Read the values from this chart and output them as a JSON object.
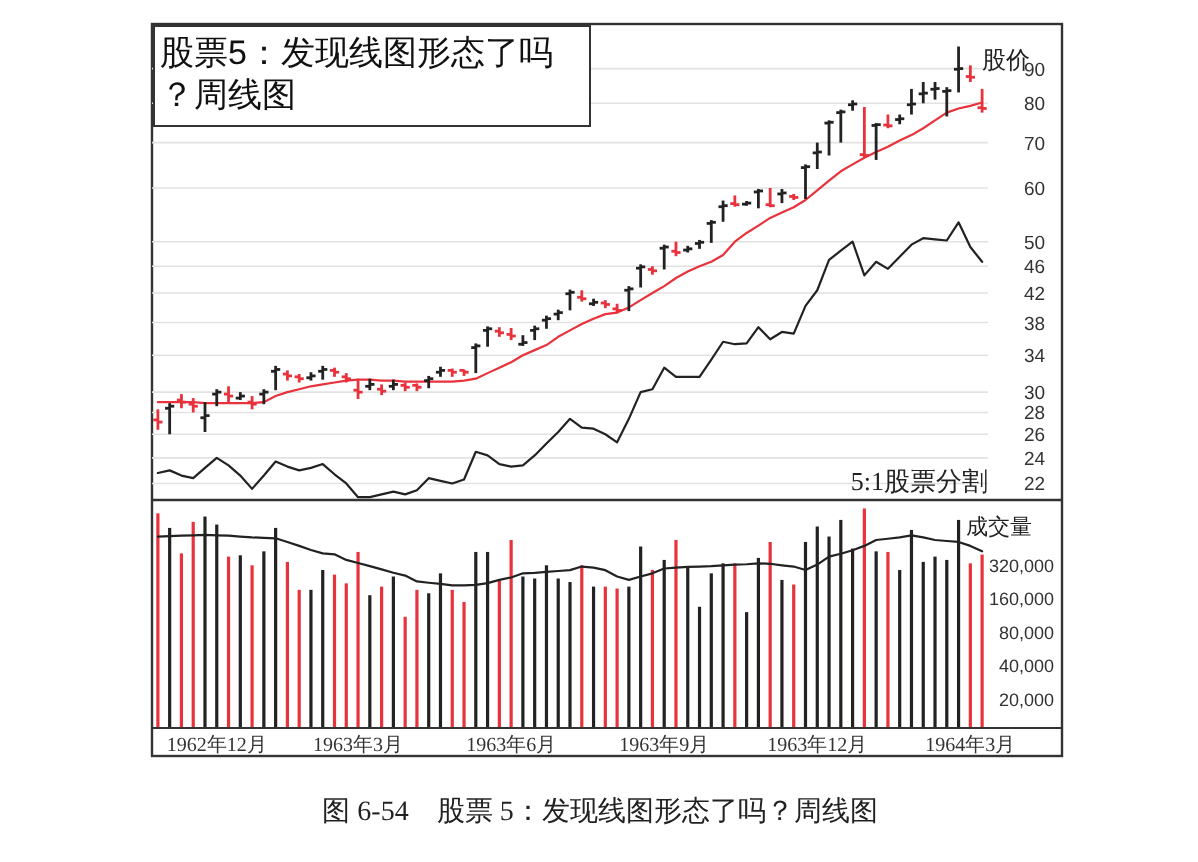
{
  "chart_data": [
    {
      "type": "candlestick",
      "title": "股票5：发现线图形态了吗？周线图",
      "ylabel": "股价",
      "categories": [
        null,
        null,
        null,
        null,
        null,
        null,
        null,
        null,
        null,
        null,
        null,
        null,
        null,
        null,
        null,
        null,
        null,
        null,
        null,
        null,
        null,
        null,
        null,
        null,
        null,
        null,
        null,
        null,
        null,
        null,
        null,
        null,
        null,
        null,
        null,
        null,
        null,
        null,
        null,
        null,
        null,
        null,
        null,
        null,
        null,
        null,
        null,
        null,
        null,
        null,
        null,
        null,
        null,
        null,
        null,
        null,
        null,
        null,
        null,
        null,
        null,
        null,
        null,
        null,
        null,
        null,
        null,
        null,
        null,
        null,
        null
      ],
      "ohlc": [
        [
          27.3,
          28.3,
          26.4,
          27.1
        ],
        [
          28.4,
          28.9,
          26.0,
          28.6
        ],
        [
          29.2,
          29.8,
          28.4,
          29.0
        ],
        [
          28.8,
          29.4,
          28.0,
          28.6
        ],
        [
          27.5,
          29.0,
          26.2,
          27.7
        ],
        [
          29.8,
          30.3,
          28.6,
          30.0
        ],
        [
          29.8,
          30.6,
          29.0,
          29.6
        ],
        [
          29.4,
          30.0,
          29.2,
          29.6
        ],
        [
          29.0,
          29.6,
          28.3,
          28.8
        ],
        [
          29.8,
          30.3,
          28.8,
          30.0
        ],
        [
          32.2,
          32.8,
          30.2,
          32.4
        ],
        [
          31.9,
          32.3,
          31.2,
          31.7
        ],
        [
          31.6,
          31.9,
          31.0,
          31.4
        ],
        [
          31.5,
          32.1,
          31.2,
          31.7
        ],
        [
          32.2,
          32.8,
          31.3,
          32.4
        ],
        [
          32.3,
          32.6,
          31.6,
          32.1
        ],
        [
          31.6,
          32.0,
          31.0,
          31.4
        ],
        [
          30.2,
          31.4,
          29.3,
          30.0
        ],
        [
          30.6,
          31.4,
          30.2,
          30.8
        ],
        [
          30.3,
          30.8,
          29.7,
          30.1
        ],
        [
          30.6,
          31.3,
          30.2,
          30.8
        ],
        [
          30.7,
          31.0,
          30.1,
          30.5
        ],
        [
          30.7,
          30.9,
          30.1,
          30.5
        ],
        [
          31.2,
          31.7,
          30.4,
          31.4
        ],
        [
          32.1,
          32.7,
          31.6,
          32.3
        ],
        [
          32.3,
          32.5,
          31.6,
          32.1
        ],
        [
          32.3,
          32.4,
          31.7,
          32.1
        ],
        [
          34.9,
          35.4,
          32.0,
          35.1
        ],
        [
          37.0,
          37.5,
          35.0,
          37.2
        ],
        [
          36.9,
          37.4,
          36.2,
          36.7
        ],
        [
          36.5,
          37.3,
          35.8,
          36.3
        ],
        [
          35.3,
          36.4,
          35.1,
          35.5
        ],
        [
          37.0,
          37.6,
          35.8,
          37.2
        ],
        [
          38.3,
          38.9,
          37.2,
          38.5
        ],
        [
          39.1,
          39.7,
          38.3,
          39.3
        ],
        [
          41.9,
          42.5,
          39.6,
          42.1
        ],
        [
          41.4,
          42.4,
          40.8,
          41.2
        ],
        [
          40.5,
          41.2,
          40.2,
          40.7
        ],
        [
          40.6,
          41.0,
          39.9,
          40.4
        ],
        [
          39.8,
          40.5,
          39.2,
          39.6
        ],
        [
          42.4,
          43.0,
          39.5,
          42.6
        ],
        [
          45.7,
          46.3,
          42.8,
          45.9
        ],
        [
          45.5,
          46.0,
          44.7,
          45.3
        ],
        [
          48.9,
          49.5,
          45.5,
          49.1
        ],
        [
          48.4,
          50.0,
          47.6,
          48.2
        ],
        [
          48.6,
          49.3,
          48.2,
          48.8
        ],
        [
          49.7,
          50.3,
          48.8,
          49.9
        ],
        [
          53.2,
          53.8,
          49.8,
          53.4
        ],
        [
          56.3,
          57.5,
          53.5,
          56.5
        ],
        [
          56.9,
          58.5,
          56.3,
          56.7
        ],
        [
          56.8,
          57.4,
          56.5,
          57.0
        ],
        [
          59.2,
          59.8,
          56.0,
          59.4
        ],
        [
          56.7,
          60.0,
          56.2,
          56.5
        ],
        [
          58.8,
          59.8,
          57.0,
          59.0
        ],
        [
          58.3,
          58.8,
          57.6,
          58.1
        ],
        [
          64.3,
          65.0,
          57.8,
          64.5
        ],
        [
          67.6,
          70.0,
          64.0,
          67.8
        ],
        [
          74.8,
          75.5,
          67.0,
          75.0
        ],
        [
          77.5,
          78.3,
          70.0,
          77.7
        ],
        [
          79.6,
          80.8,
          78.0,
          79.8
        ],
        [
          67.2,
          79.0,
          66.5,
          67.0
        ],
        [
          74.2,
          74.8,
          66.0,
          74.4
        ],
        [
          74.3,
          77.0,
          73.5,
          74.1
        ],
        [
          75.7,
          77.0,
          74.5,
          75.9
        ],
        [
          79.6,
          84.0,
          77.0,
          79.8
        ],
        [
          82.6,
          86.0,
          80.0,
          82.8
        ],
        [
          83.9,
          86.0,
          81.0,
          84.1
        ],
        [
          83.3,
          84.5,
          76.5,
          83.5
        ],
        [
          89.8,
          97.0,
          83.0,
          90.0
        ],
        [
          87.6,
          91.0,
          86.0,
          87.4
        ],
        [
          78.8,
          84.0,
          77.5,
          78.6
        ]
      ],
      "colors": [
        "#e8323c",
        "#222222",
        "#e8323c",
        "#e8323c",
        "#222222",
        "#222222",
        "#e8323c",
        "#222222",
        "#e8323c",
        "#222222",
        "#222222",
        "#e8323c",
        "#e8323c",
        "#222222",
        "#222222",
        "#e8323c",
        "#e8323c",
        "#e8323c",
        "#222222",
        "#e8323c",
        "#222222",
        "#e8323c",
        "#e8323c",
        "#222222",
        "#222222",
        "#e8323c",
        "#e8323c",
        "#222222",
        "#222222",
        "#e8323c",
        "#e8323c",
        "#222222",
        "#222222",
        "#222222",
        "#222222",
        "#222222",
        "#e8323c",
        "#222222",
        "#e8323c",
        "#e8323c",
        "#222222",
        "#222222",
        "#e8323c",
        "#222222",
        "#e8323c",
        "#222222",
        "#222222",
        "#222222",
        "#222222",
        "#e8323c",
        "#222222",
        "#222222",
        "#e8323c",
        "#222222",
        "#e8323c",
        "#222222",
        "#222222",
        "#222222",
        "#222222",
        "#222222",
        "#e8323c",
        "#222222",
        "#e8323c",
        "#222222",
        "#222222",
        "#222222",
        "#222222",
        "#222222",
        "#222222",
        "#e8323c",
        "#e8323c"
      ],
      "series": [
        {
          "type": "line",
          "color": "#e8323c",
          "values": [
            29.0,
            29.0,
            29.0,
            29.0,
            28.9,
            28.9,
            28.9,
            28.9,
            28.9,
            29.0,
            29.6,
            30.0,
            30.3,
            30.6,
            30.8,
            31.0,
            31.2,
            31.3,
            31.3,
            31.2,
            31.2,
            31.1,
            31.1,
            31.1,
            31.1,
            31.1,
            31.2,
            31.4,
            32.0,
            32.6,
            33.2,
            34.0,
            34.6,
            35.2,
            36.2,
            37.0,
            37.8,
            38.5,
            39.1,
            39.3,
            40.0,
            41.0,
            42.0,
            43.0,
            44.2,
            45.2,
            46.0,
            46.7,
            47.8,
            50.0,
            51.5,
            52.8,
            54.2,
            55.2,
            56.2,
            57.6,
            59.5,
            61.5,
            63.5,
            65.0,
            66.5,
            67.8,
            69.0,
            70.5,
            71.8,
            73.5,
            75.5,
            77.5,
            78.6,
            79.3,
            80.2
          ]
        },
        {
          "type": "line",
          "color": "#222222",
          "values": [
            22.8,
            23.0,
            22.6,
            22.4,
            23.2,
            24.0,
            23.4,
            22.6,
            21.6,
            22.6,
            23.7,
            23.3,
            23.0,
            23.2,
            23.5,
            22.7,
            22.0,
            21.0,
            21.0,
            21.2,
            21.4,
            21.2,
            21.5,
            22.4,
            22.2,
            22.0,
            22.3,
            24.5,
            24.2,
            23.5,
            23.3,
            23.4,
            24.2,
            25.2,
            26.2,
            27.4,
            26.6,
            26.5,
            26.0,
            25.3,
            27.4,
            30.0,
            30.3,
            32.6,
            31.6,
            31.6,
            31.6,
            33.5,
            35.6,
            35.3,
            35.4,
            37.4,
            35.9,
            36.8,
            36.6,
            40.2,
            42.4,
            47.0,
            48.5,
            50.0,
            44.6,
            46.7,
            45.6,
            47.5,
            49.5,
            50.6,
            50.4,
            50.2,
            53.4,
            49.1,
            46.7
          ]
        }
      ],
      "log": "y",
      "ylim": [
        20.8,
        104
      ],
      "yticks": [
        22,
        24,
        26,
        28,
        30,
        34,
        38,
        42,
        46,
        50,
        60,
        70,
        80,
        90
      ],
      "grid": "y",
      "tick_labels": "y",
      "annotations": [
        "5:1股票分割",
        "图 6-54　股票 5：发现线图形态了吗？周线图"
      ]
    },
    {
      "type": "bar",
      "ylabel": "成交量",
      "categories": [
        null,
        null,
        null,
        null,
        null,
        "1962年12月",
        null,
        null,
        null,
        null,
        null,
        null,
        null,
        null,
        null,
        null,
        null,
        "1963年3月",
        null,
        null,
        null,
        null,
        null,
        null,
        null,
        null,
        null,
        null,
        null,
        null,
        "1963年6月",
        null,
        null,
        null,
        null,
        null,
        null,
        null,
        null,
        null,
        null,
        null,
        null,
        "1963年9月",
        null,
        null,
        null,
        null,
        null,
        null,
        null,
        null,
        null,
        null,
        null,
        null,
        "1963年12月",
        null,
        null,
        null,
        null,
        null,
        null,
        null,
        null,
        null,
        null,
        null,
        null,
        "1964年3月",
        null
      ],
      "series": [
        {
          "type": "bar",
          "values": [
            920000,
            681000,
            403000,
            771000,
            861000,
            730000,
            377000,
            387000,
            315000,
            420000,
            681000,
            338000,
            190000,
            190000,
            286000,
            260000,
            217000,
            415000,
            170000,
            203000,
            250000,
            109000,
            190000,
            177000,
            267000,
            190000,
            148000,
            415000,
            415000,
            233000,
            531000,
            250000,
            240000,
            315000,
            240000,
            223000,
            315000,
            203000,
            203000,
            195000,
            203000,
            464000,
            286000,
            352000,
            531000,
            307000,
            134000,
            267000,
            328000,
            328000,
            120000,
            367000,
            510000,
            233000,
            212000,
            510000,
            701000,
            570000,
            803000,
            445000,
            1016000,
            420000,
            415000,
            286000,
            653000,
            338000,
            377000,
            352000,
            803000,
            328000,
            393000
          ],
          "colors": [
            "#e8323c",
            "#222222",
            "#e8323c",
            "#e8323c",
            "#222222",
            "#222222",
            "#e8323c",
            "#222222",
            "#e8323c",
            "#222222",
            "#222222",
            "#e8323c",
            "#e8323c",
            "#222222",
            "#222222",
            "#e8323c",
            "#e8323c",
            "#e8323c",
            "#222222",
            "#e8323c",
            "#222222",
            "#e8323c",
            "#e8323c",
            "#222222",
            "#222222",
            "#e8323c",
            "#e8323c",
            "#222222",
            "#222222",
            "#e8323c",
            "#e8323c",
            "#222222",
            "#222222",
            "#222222",
            "#222222",
            "#222222",
            "#e8323c",
            "#222222",
            "#e8323c",
            "#e8323c",
            "#222222",
            "#222222",
            "#e8323c",
            "#222222",
            "#e8323c",
            "#222222",
            "#222222",
            "#222222",
            "#222222",
            "#e8323c",
            "#222222",
            "#222222",
            "#e8323c",
            "#222222",
            "#e8323c",
            "#222222",
            "#222222",
            "#222222",
            "#222222",
            "#222222",
            "#e8323c",
            "#222222",
            "#e8323c",
            "#222222",
            "#222222",
            "#222222",
            "#222222",
            "#222222",
            "#222222",
            "#e8323c",
            "#e8323c"
          ]
        },
        {
          "type": "line",
          "color": "#222222",
          "values": [
            570000,
            575000,
            580000,
            585000,
            590000,
            585000,
            580000,
            570000,
            560000,
            555000,
            550000,
            510000,
            470000,
            432000,
            403000,
            395000,
            352000,
            330000,
            310000,
            290000,
            270000,
            255000,
            226000,
            220000,
            215000,
            208000,
            208000,
            210000,
            218000,
            233000,
            245000,
            267000,
            270000,
            275000,
            280000,
            285000,
            307000,
            300000,
            285000,
            250000,
            233000,
            250000,
            267000,
            295000,
            300000,
            305000,
            307000,
            310000,
            315000,
            320000,
            322000,
            328000,
            325000,
            315000,
            307000,
            286000,
            320000,
            377000,
            400000,
            430000,
            470000,
            531000,
            545000,
            560000,
            584000,
            560000,
            531000,
            520000,
            510000,
            470000,
            420000
          ]
        }
      ],
      "log": "y",
      "ylim": [
        11000,
        1070000
      ],
      "yticks": [
        {
          "value": 20000,
          "label": "20,000"
        },
        {
          "value": 40000,
          "label": "40,000"
        },
        {
          "value": 80000,
          "label": "80,000"
        },
        {
          "value": 160000,
          "label": "160,000"
        },
        {
          "value": 320000,
          "label": "320,000"
        }
      ]
    }
  ]
}
